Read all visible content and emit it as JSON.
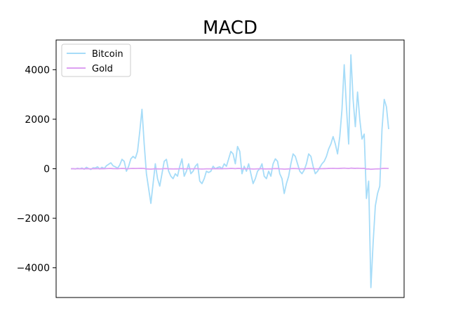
{
  "chart_data": {
    "type": "line",
    "title": "MACD",
    "xlabel": "",
    "ylabel": "",
    "ylim": [
      -5200,
      5200
    ],
    "yticks": [
      -4000,
      -2000,
      0,
      2000,
      4000
    ],
    "ytick_labels": [
      "−4000",
      "−2000",
      "0",
      "2000",
      "4000"
    ],
    "xticks_visible": false,
    "grid": false,
    "legend_position": "top-left",
    "series": [
      {
        "name": "Bitcoin",
        "color": "#a6dcf8",
        "values": [
          0,
          5,
          -10,
          20,
          0,
          30,
          -20,
          60,
          10,
          -30,
          40,
          30,
          80,
          -10,
          60,
          10,
          120,
          180,
          240,
          120,
          80,
          20,
          150,
          380,
          300,
          -100,
          100,
          400,
          500,
          420,
          700,
          1500,
          2400,
          1000,
          -200,
          -800,
          -1400,
          -600,
          200,
          -400,
          -700,
          -200,
          300,
          380,
          -100,
          -300,
          -400,
          -200,
          -300,
          100,
          400,
          -300,
          -100,
          200,
          -200,
          -100,
          100,
          200,
          -500,
          -600,
          -400,
          -100,
          -150,
          -100,
          100,
          0,
          50,
          80,
          0,
          200,
          100,
          400,
          700,
          600,
          200,
          900,
          700,
          -200,
          100,
          -100,
          200,
          -200,
          -600,
          -400,
          -100,
          0,
          200,
          -300,
          -400,
          -100,
          -300,
          200,
          400,
          300,
          -200,
          -400,
          -1000,
          -600,
          -300,
          200,
          600,
          500,
          200,
          -100,
          -200,
          -50,
          200,
          600,
          500,
          100,
          -200,
          -100,
          50,
          200,
          300,
          500,
          800,
          1000,
          1300,
          1000,
          600,
          1300,
          2400,
          4200,
          2500,
          1000,
          4600,
          2800,
          1700,
          3100,
          2000,
          1200,
          1400,
          -1200,
          -500,
          -4800,
          -3000,
          -1500,
          -1000,
          -700,
          1600,
          2800,
          2500,
          1600
        ]
      },
      {
        "name": "Gold",
        "color": "#dda0f2",
        "values": [
          0,
          2,
          -3,
          4,
          0,
          3,
          -2,
          5,
          2,
          -3,
          4,
          2,
          6,
          -2,
          5,
          1,
          8,
          10,
          12,
          6,
          4,
          2,
          8,
          14,
          10,
          -4,
          3,
          10,
          12,
          10,
          14,
          16,
          18,
          10,
          -6,
          -10,
          -14,
          -8,
          4,
          -6,
          -8,
          -4,
          6,
          8,
          -3,
          -6,
          -8,
          -4,
          -6,
          3,
          8,
          -6,
          -3,
          4,
          -4,
          -3,
          3,
          4,
          -8,
          -10,
          -8,
          -3,
          -4,
          -3,
          3,
          0,
          2,
          3,
          0,
          4,
          3,
          8,
          12,
          10,
          4,
          14,
          12,
          -4,
          3,
          -3,
          4,
          -4,
          -10,
          -8,
          -3,
          0,
          4,
          -6,
          -8,
          -3,
          -6,
          4,
          8,
          6,
          -4,
          -8,
          -14,
          -10,
          -6,
          4,
          10,
          8,
          4,
          -3,
          -4,
          -2,
          4,
          10,
          8,
          3,
          -4,
          -3,
          2,
          4,
          6,
          8,
          12,
          14,
          16,
          14,
          10,
          16,
          20,
          24,
          18,
          12,
          26,
          20,
          16,
          22,
          18,
          14,
          16,
          -10,
          -6,
          -20,
          -14,
          -8,
          -6,
          -4,
          10,
          16,
          14,
          10
        ]
      }
    ]
  }
}
